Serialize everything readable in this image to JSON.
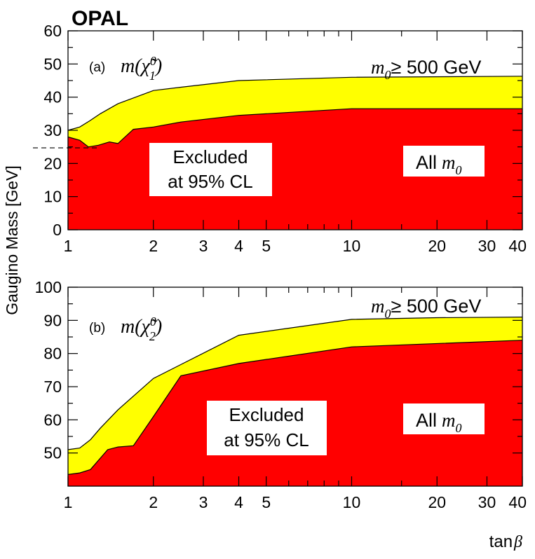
{
  "figure": {
    "experiment": "OPAL",
    "ylabel": "Gaugino Mass [GeV]",
    "xlabel": "tan",
    "xlabel_symbol": "β"
  },
  "chart_data": [
    {
      "type": "area",
      "panel_label": "(a)",
      "mass_symbol": "m(",
      "particle": "χ̃",
      "particle_sup": "0",
      "particle_sub": "1",
      "close_paren": ")",
      "xscale": "log",
      "xlim": [
        1,
        40
      ],
      "ylim": [
        0,
        60
      ],
      "xticks": [
        1,
        2,
        3,
        4,
        5,
        10,
        20,
        30,
        40
      ],
      "yticks": [
        0,
        10,
        20,
        30,
        40,
        50,
        60
      ],
      "xtick_labels": [
        "1",
        "2",
        "3",
        "4",
        "5",
        "10",
        "20",
        "30",
        "40"
      ],
      "ytick_labels": [
        "0",
        "10",
        "20",
        "30",
        "40",
        "50",
        "60"
      ],
      "series": [
        {
          "name": "m0 >= 500 GeV",
          "color": "#ffff00",
          "x": [
            1.0,
            1.1,
            1.2,
            1.3,
            1.5,
            2.0,
            2.5,
            4.0,
            10.0,
            40.0
          ],
          "values": [
            30.0,
            31.0,
            33.0,
            35.0,
            38.0,
            42.0,
            43.0,
            45.0,
            46.0,
            46.3
          ]
        },
        {
          "name": "All m0",
          "color": "#ff0000",
          "x": [
            1.0,
            1.1,
            1.18,
            1.28,
            1.4,
            1.5,
            1.7,
            2.0,
            2.5,
            4.0,
            10.0,
            40.0
          ],
          "values": [
            28.0,
            27.0,
            25.0,
            25.5,
            26.5,
            26.0,
            30.3,
            31.0,
            32.5,
            34.5,
            36.5,
            36.5
          ]
        }
      ],
      "reference_line": {
        "y": 24.7,
        "x_range": [
          0.85,
          1.3
        ],
        "style": "dashed"
      },
      "labels": {
        "upper": "≥ 500 GeV",
        "upper_var": "m",
        "upper_sub": "0",
        "region_line1": "Excluded",
        "region_line2": "at 95% CL",
        "all_m0": "All",
        "all_var": "m",
        "all_sub": "0"
      }
    },
    {
      "type": "area",
      "panel_label": "(b)",
      "mass_symbol": "m(",
      "particle": "χ̃",
      "particle_sup": "0",
      "particle_sub": "2",
      "close_paren": ")",
      "xscale": "log",
      "xlim": [
        1,
        40
      ],
      "ylim": [
        40,
        100
      ],
      "xticks": [
        1,
        2,
        3,
        4,
        5,
        10,
        20,
        30,
        40
      ],
      "yticks": [
        50,
        60,
        70,
        80,
        90,
        100
      ],
      "xtick_labels": [
        "1",
        "2",
        "3",
        "4",
        "5",
        "10",
        "20",
        "30",
        "40"
      ],
      "ytick_labels": [
        "50",
        "60",
        "70",
        "80",
        "90",
        "100"
      ],
      "series": [
        {
          "name": "m0 >= 500 GeV",
          "color": "#ffff00",
          "x": [
            1.0,
            1.1,
            1.2,
            1.3,
            1.5,
            2.0,
            4.0,
            10.0,
            20.0,
            40.0
          ],
          "values": [
            51.0,
            51.5,
            54.0,
            57.5,
            63.0,
            72.5,
            85.5,
            90.3,
            90.8,
            91.0
          ]
        },
        {
          "name": "All m0",
          "color": "#ff0000",
          "x": [
            1.0,
            1.1,
            1.2,
            1.38,
            1.5,
            1.7,
            2.0,
            2.5,
            4.0,
            10.0,
            40.0
          ],
          "values": [
            43.5,
            44.0,
            45.0,
            51.0,
            51.8,
            52.2,
            61.0,
            73.3,
            77.0,
            82.0,
            84.0
          ]
        }
      ],
      "labels": {
        "upper": "≥ 500 GeV",
        "upper_var": "m",
        "upper_sub": "0",
        "region_line1": "Excluded",
        "region_line2": "at 95% CL",
        "all_m0": "All",
        "all_var": "m",
        "all_sub": "0"
      }
    }
  ]
}
